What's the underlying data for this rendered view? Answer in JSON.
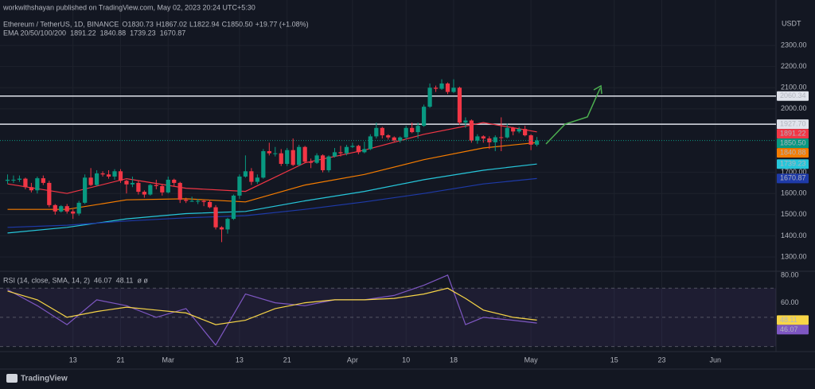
{
  "header": {
    "publisher": "workwithshayan published on TradingView.com, May 02, 2023 20:24 UTC+5:30",
    "watermark": "TradingView"
  },
  "chart_data": [
    {
      "type": "candlestick",
      "title": "Ethereum / TetherUS, 1D, BINANCE",
      "ohlc_prefixes": [
        "O",
        "H",
        "L",
        "C"
      ],
      "change_label": "+19.77 (+1.08%)",
      "last_price_label": "1850.50",
      "axis_unit": "USDT",
      "open": [
        1660,
        1665,
        1665,
        1670,
        1630,
        1615,
        1672,
        1650,
        1545,
        1515,
        1540,
        1515,
        1505,
        1556,
        1675,
        1640,
        1695,
        1690,
        1680,
        1705,
        1660,
        1643,
        1650,
        1608,
        1595,
        1640,
        1635,
        1605,
        1665,
        1650,
        1570,
        1565,
        1565,
        1565,
        1560,
        1535,
        1440,
        1430,
        1480,
        1590,
        1680,
        1705,
        1655,
        1675,
        1800,
        1790,
        1790,
        1740,
        1805,
        1735,
        1820,
        1750,
        1745,
        1780,
        1710,
        1775,
        1795,
        1790,
        1820,
        1825,
        1795,
        1810,
        1870,
        1910,
        1875,
        1865,
        1850,
        1865,
        1910,
        1890,
        1920,
        2010,
        2100,
        2095,
        2120,
        2080,
        2100,
        1935,
        1945,
        1850,
        1870,
        1860,
        1842,
        1866,
        1865,
        1910,
        1893,
        1905,
        1875,
        1830.73
      ],
      "high": [
        1690,
        1685,
        1685,
        1675,
        1650,
        1680,
        1685,
        1660,
        1550,
        1545,
        1550,
        1525,
        1565,
        1690,
        1720,
        1710,
        1705,
        1710,
        1715,
        1715,
        1665,
        1680,
        1660,
        1615,
        1645,
        1665,
        1645,
        1680,
        1670,
        1655,
        1580,
        1585,
        1575,
        1570,
        1570,
        1545,
        1445,
        1485,
        1595,
        1690,
        1780,
        1720,
        1690,
        1810,
        1840,
        1820,
        1810,
        1815,
        1860,
        1830,
        1825,
        1765,
        1790,
        1785,
        1780,
        1815,
        1825,
        1830,
        1840,
        1830,
        1845,
        1880,
        1935,
        1915,
        1880,
        1870,
        1870,
        1920,
        1935,
        1935,
        2020,
        2120,
        2110,
        2140,
        2125,
        2140,
        2105,
        1960,
        1950,
        1880,
        1875,
        1870,
        1875,
        1960,
        1930,
        1915,
        1915,
        1920,
        1880,
        1867.02
      ],
      "low": [
        1645,
        1650,
        1655,
        1620,
        1605,
        1600,
        1640,
        1535,
        1500,
        1510,
        1505,
        1480,
        1495,
        1550,
        1635,
        1635,
        1680,
        1670,
        1665,
        1650,
        1600,
        1630,
        1595,
        1580,
        1590,
        1620,
        1590,
        1600,
        1635,
        1555,
        1555,
        1560,
        1550,
        1540,
        1530,
        1430,
        1370,
        1410,
        1475,
        1575,
        1675,
        1640,
        1645,
        1670,
        1780,
        1775,
        1730,
        1730,
        1730,
        1730,
        1745,
        1720,
        1740,
        1700,
        1700,
        1770,
        1775,
        1780,
        1815,
        1785,
        1790,
        1805,
        1860,
        1860,
        1855,
        1845,
        1840,
        1855,
        1885,
        1860,
        1915,
        2005,
        2080,
        2090,
        2070,
        2075,
        1925,
        1910,
        1840,
        1835,
        1840,
        1810,
        1800,
        1800,
        1860,
        1875,
        1885,
        1870,
        1805,
        1822.94
      ],
      "close": [
        1665,
        1665,
        1670,
        1630,
        1615,
        1672,
        1650,
        1545,
        1515,
        1540,
        1515,
        1505,
        1556,
        1675,
        1640,
        1695,
        1690,
        1680,
        1705,
        1660,
        1643,
        1650,
        1608,
        1595,
        1640,
        1635,
        1605,
        1665,
        1650,
        1570,
        1565,
        1565,
        1565,
        1560,
        1535,
        1440,
        1430,
        1480,
        1590,
        1680,
        1705,
        1655,
        1675,
        1800,
        1790,
        1790,
        1740,
        1805,
        1735,
        1820,
        1750,
        1745,
        1780,
        1710,
        1775,
        1795,
        1790,
        1820,
        1825,
        1795,
        1810,
        1870,
        1910,
        1875,
        1865,
        1850,
        1865,
        1910,
        1890,
        1920,
        2010,
        2100,
        2095,
        2120,
        2080,
        2100,
        1935,
        1945,
        1850,
        1870,
        1860,
        1842,
        1866,
        1865,
        1910,
        1893,
        1905,
        1875,
        1830.73,
        1850.5
      ],
      "up_color": "#089981",
      "down_color": "#f23645",
      "xlim": [
        -0.2,
        129.2
      ],
      "xticks": [
        {
          "value": 11,
          "label": "13"
        },
        {
          "value": 19,
          "label": "21"
        },
        {
          "value": 27,
          "label": "Mar"
        },
        {
          "value": 39,
          "label": "13"
        },
        {
          "value": 47,
          "label": "21"
        },
        {
          "value": 58,
          "label": "Apr"
        },
        {
          "value": 67,
          "label": "10"
        },
        {
          "value": 75,
          "label": "18"
        },
        {
          "value": 88,
          "label": "May"
        },
        {
          "value": 102,
          "label": "15"
        },
        {
          "value": 110,
          "label": "23"
        },
        {
          "value": 119,
          "label": "Jun"
        }
      ],
      "ylim": [
        1236,
        2447
      ],
      "yticks": [
        {
          "value": 1300,
          "label": "1300.00"
        },
        {
          "value": 1400,
          "label": "1400.00"
        },
        {
          "value": 1500,
          "label": "1500.00"
        },
        {
          "value": 1600,
          "label": "1600.00"
        },
        {
          "value": 1700,
          "label": "1700.00"
        },
        {
          "value": 2000,
          "label": "2000.00"
        },
        {
          "value": 2100,
          "label": "2100.00"
        },
        {
          "value": 2200,
          "label": "2200.00"
        },
        {
          "value": 2300,
          "label": "2300.00"
        }
      ],
      "hlines": [
        {
          "value": 2060.34,
          "label": "2060.34"
        },
        {
          "value": 1927.7,
          "label": "1927.70"
        }
      ],
      "indicator_label": "EMA 20/50/100/200",
      "series": [
        {
          "color": "#f23645",
          "x": [
            0,
            10,
            20,
            30,
            40,
            50,
            60,
            70,
            80,
            89
          ],
          "values": [
            1645,
            1600,
            1670,
            1625,
            1610,
            1745,
            1805,
            1880,
            1935,
            1891.22
          ]
        },
        {
          "color": "#f57c00",
          "x": [
            0,
            10,
            20,
            30,
            40,
            50,
            60,
            70,
            80,
            89
          ],
          "values": [
            1525,
            1525,
            1570,
            1575,
            1560,
            1640,
            1690,
            1760,
            1815,
            1840.88
          ]
        },
        {
          "color": "#26c6da",
          "x": [
            0,
            10,
            20,
            30,
            40,
            50,
            60,
            70,
            80,
            89
          ],
          "values": [
            1413,
            1440,
            1480,
            1505,
            1515,
            1565,
            1610,
            1665,
            1710,
            1739.23
          ]
        },
        {
          "color": "#1e3aa8",
          "x": [
            0,
            10,
            20,
            30,
            40,
            50,
            60,
            70,
            80,
            89
          ],
          "values": [
            1440,
            1450,
            1470,
            1485,
            1495,
            1525,
            1560,
            1600,
            1645,
            1670.87
          ]
        }
      ]
    },
    {
      "type": "line",
      "title": "RSI (14, close, SMA, 14, 2)",
      "flags": "ø ø",
      "xlim": [
        -0.2,
        129.2
      ],
      "ylim": [
        26.5,
        81.6
      ],
      "yticks": [
        {
          "value": 80,
          "label": "80.00"
        },
        {
          "value": 60,
          "label": "60.00"
        },
        {
          "value": 40,
          "label": "40.00"
        }
      ],
      "levels": [
        70,
        50,
        30
      ],
      "series": [
        {
          "color": "#7e57c2",
          "x": [
            0,
            5,
            10,
            15,
            20,
            25,
            30,
            35,
            40,
            45,
            50,
            55,
            60,
            65,
            70,
            74,
            77,
            80,
            85,
            89
          ],
          "values": [
            69,
            58,
            45,
            62,
            58,
            50,
            56,
            31,
            66,
            60,
            58,
            62,
            62,
            65,
            72,
            79,
            45,
            50,
            48,
            46.07
          ],
          "last_value_label": "46.07"
        },
        {
          "color": "#f7d547",
          "x": [
            0,
            5,
            10,
            15,
            20,
            25,
            30,
            35,
            40,
            45,
            50,
            55,
            60,
            65,
            70,
            74,
            77,
            80,
            85,
            89
          ],
          "values": [
            68,
            62,
            50,
            54,
            57,
            55,
            53,
            45,
            48,
            56,
            60,
            62,
            62,
            63,
            66,
            70,
            63,
            55,
            50,
            48.11
          ],
          "last_value_label": "48.11"
        }
      ]
    }
  ]
}
